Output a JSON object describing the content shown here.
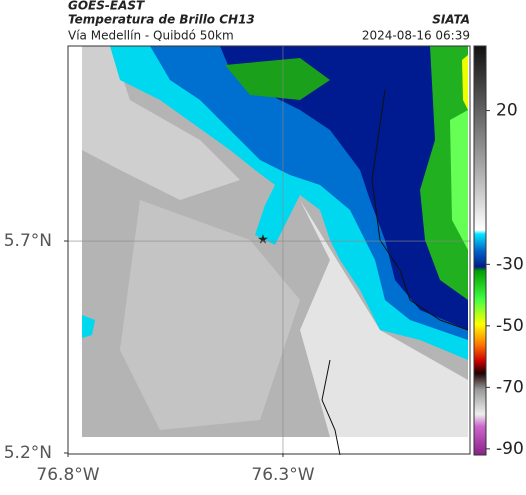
{
  "header": {
    "title": "GOES-EAST",
    "subtitle": "Temperatura de Brillo CH13",
    "caption": "Vía Medellín - Quibdó 50km",
    "source": "SIATA",
    "timestamp": "2024-08-16 06:39"
  },
  "map": {
    "xlim": [
      -76.8,
      -75.865
    ],
    "ylim": [
      5.2,
      6.16
    ],
    "xticks": [
      {
        "value": -76.8,
        "label": "76.8°W"
      },
      {
        "value": -76.3,
        "label": "76.3°W"
      }
    ],
    "yticks": [
      {
        "value": 5.2,
        "label": "5.2°N"
      },
      {
        "value": 5.7,
        "label": "5.7°N"
      }
    ],
    "colorbar": {
      "lim": [
        -92,
        41
      ],
      "ticks": [
        20,
        -30,
        -50,
        -70,
        -90
      ]
    }
  }
}
